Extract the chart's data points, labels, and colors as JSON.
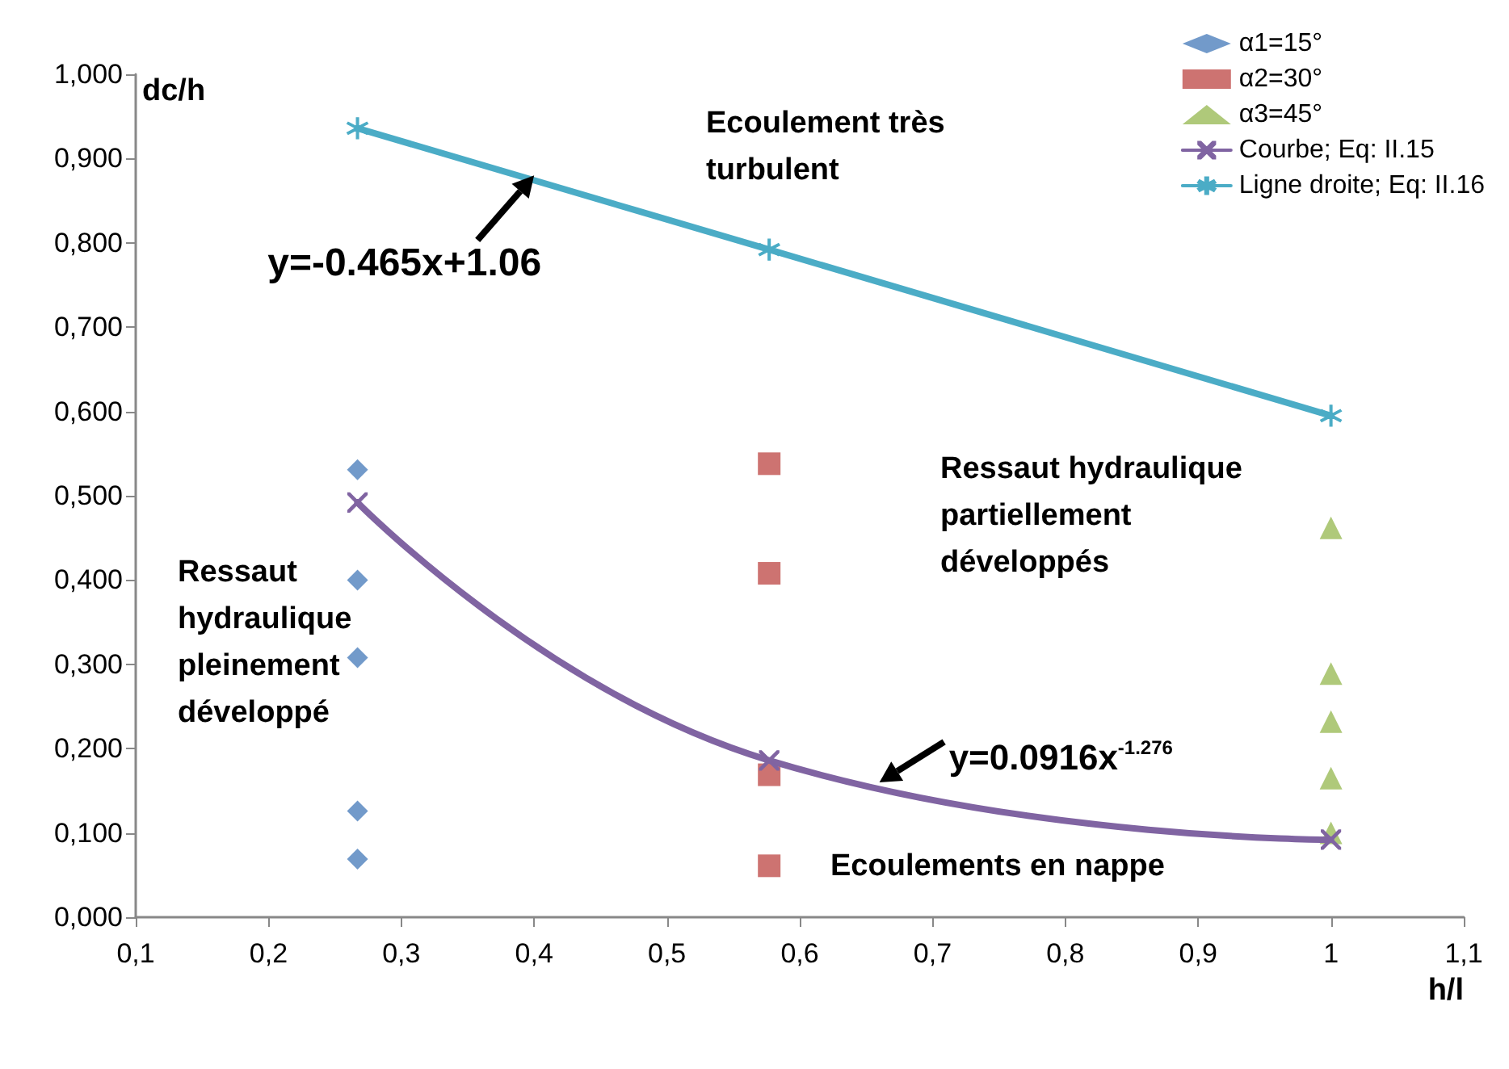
{
  "chart_data": {
    "type": "scatter",
    "xlabel": "h/l",
    "ylabel": "dc/h",
    "xlim": [
      0.1,
      1.1
    ],
    "xticks": [
      {
        "value": 0.1,
        "label": "0,1"
      },
      {
        "value": 0.2,
        "label": "0,2"
      },
      {
        "value": 0.3,
        "label": "0,3"
      },
      {
        "value": 0.4,
        "label": "0,4"
      },
      {
        "value": 0.5,
        "label": "0,5"
      },
      {
        "value": 0.6,
        "label": "0,6"
      },
      {
        "value": 0.7,
        "label": "0,7"
      },
      {
        "value": 0.8,
        "label": "0,8"
      },
      {
        "value": 0.9,
        "label": "0,9"
      },
      {
        "value": 1,
        "label": "1"
      },
      {
        "value": 1.1,
        "label": "1,1"
      }
    ],
    "ylim": [
      0,
      1
    ],
    "yticks": [
      {
        "value": 0,
        "label": "0,000"
      },
      {
        "value": 0.1,
        "label": "0,100"
      },
      {
        "value": 0.2,
        "label": "0,200"
      },
      {
        "value": 0.3,
        "label": "0,300"
      },
      {
        "value": 0.4,
        "label": "0,400"
      },
      {
        "value": 0.5,
        "label": "0,500"
      },
      {
        "value": 0.6,
        "label": "0,600"
      },
      {
        "value": 0.7,
        "label": "0,700"
      },
      {
        "value": 0.8,
        "label": "0,800"
      },
      {
        "value": 0.9,
        "label": "0,900"
      },
      {
        "value": 1,
        "label": "1,000"
      }
    ],
    "legend": "top right",
    "series": [
      {
        "name": "α1=15°",
        "marker": "diamond",
        "color": "#4f81bd",
        "x": [
          0.267,
          0.267,
          0.267,
          0.267,
          0.267
        ],
        "values": [
          0.531,
          0.4,
          0.308,
          0.126,
          0.069
        ]
      },
      {
        "name": "α2=30°",
        "marker": "square",
        "color": "#c0504d",
        "x": [
          0.577,
          0.577,
          0.577,
          0.577
        ],
        "values": [
          0.538,
          0.408,
          0.169,
          0.061
        ]
      },
      {
        "name": "α3=45°",
        "marker": "triangle",
        "color": "#9bbb59",
        "x": [
          1,
          1,
          1,
          1,
          1
        ],
        "values": [
          0.462,
          0.289,
          0.232,
          0.165,
          0.1
        ]
      },
      {
        "name": "Courbe; Eq: II.15",
        "type": "line",
        "marker": "cross",
        "color": "#8064a2",
        "x": [
          0.267,
          0.577,
          1
        ],
        "values": [
          0.492,
          0.186,
          0.092
        ]
      },
      {
        "name": "Ligne droite; Eq: II.16",
        "type": "line",
        "marker": "star",
        "color": "#4bacc6",
        "x": [
          0.267,
          0.577,
          1
        ],
        "values": [
          0.936,
          0.792,
          0.595
        ]
      }
    ],
    "annotations": [
      {
        "text": "y=-0.465x+1.06",
        "x": 0.4,
        "y": 0.88
      },
      {
        "text": "y=0.0916x$^{-1.276}$",
        "x": 0.66,
        "y": 0.16
      },
      "Ecoulement très turbulent",
      "Ressaut hydraulique partiellement développés",
      "Ressaut hydraulique pleinement développé",
      "Ecoulements en nappe"
    ]
  }
}
